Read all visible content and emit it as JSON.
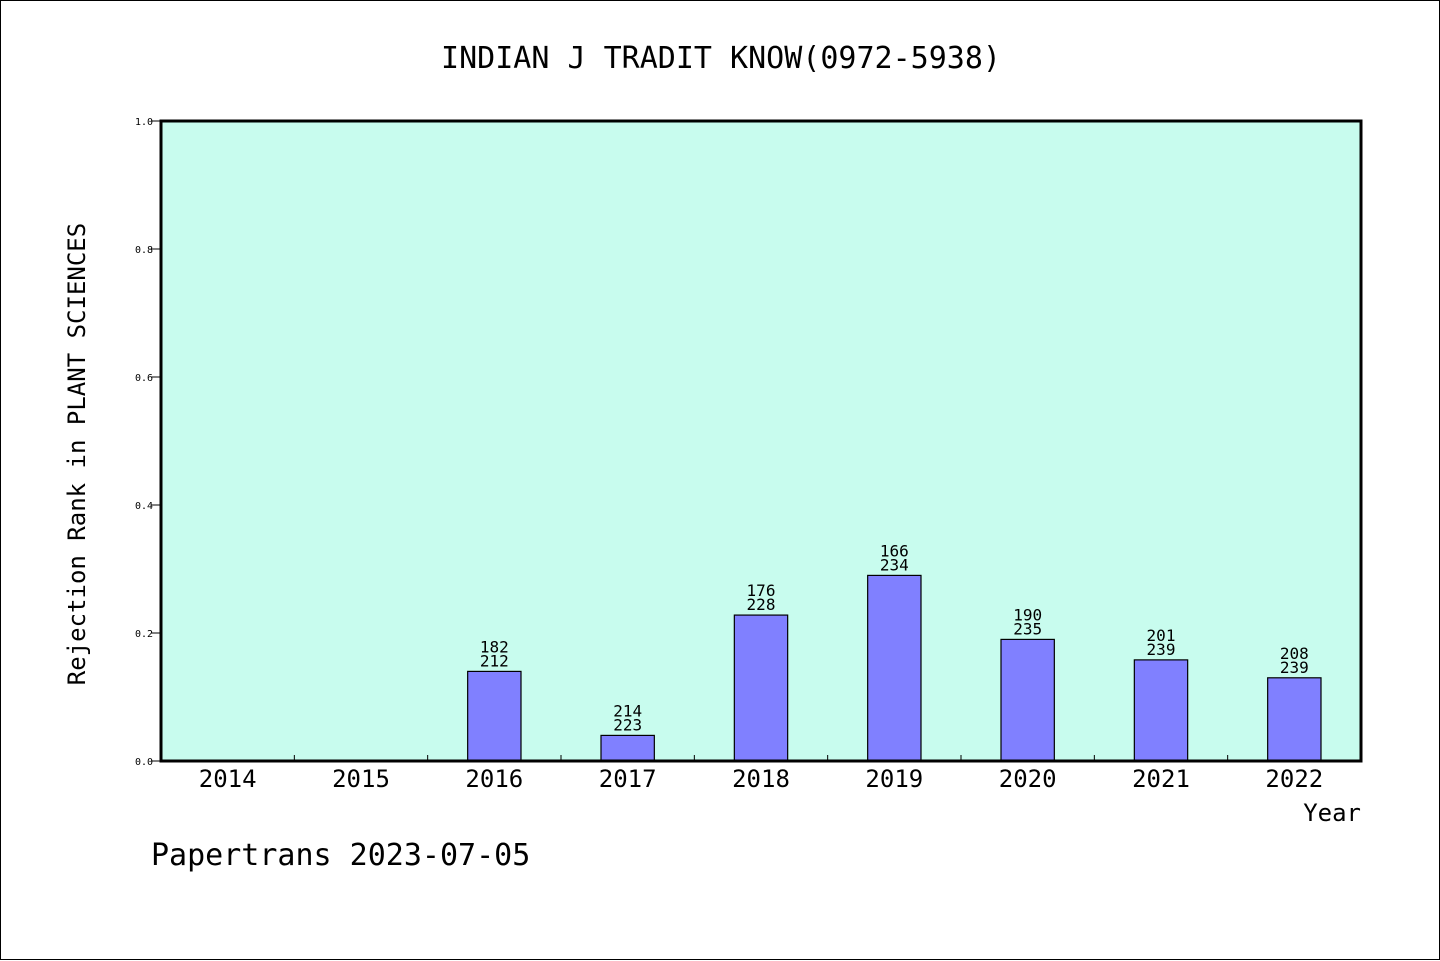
{
  "chart_data": {
    "type": "bar",
    "title": "INDIAN J TRADIT KNOW(0972-5938)",
    "xlabel": "Year",
    "ylabel": "Rejection Rank in PLANT SCIENCES",
    "categories": [
      "2014",
      "2015",
      "2016",
      "2017",
      "2018",
      "2019",
      "2020",
      "2021",
      "2022"
    ],
    "values": [
      null,
      null,
      0.14,
      0.04,
      0.228,
      0.29,
      0.19,
      0.158,
      0.13
    ],
    "labels": [
      null,
      null,
      [
        "182",
        "212"
      ],
      [
        "214",
        "223"
      ],
      [
        "176",
        "228"
      ],
      [
        "166",
        "234"
      ],
      [
        "190",
        "235"
      ],
      [
        "201",
        "239"
      ],
      [
        "208",
        "239"
      ]
    ],
    "yticks": [
      "0.0",
      "0.2",
      "0.4",
      "0.6",
      "0.8",
      "1.0"
    ],
    "ytick_values": [
      0,
      0.2,
      0.4,
      0.6,
      0.8,
      1.0
    ],
    "ylim": [
      0,
      1.0
    ],
    "grid": false,
    "colors": {
      "plot_background": "#c8fcee",
      "bar_fill": "#8080ff",
      "bar_stroke": "#000000",
      "axis": "#000000"
    }
  },
  "footer": {
    "text": "Papertrans 2023-07-05"
  }
}
